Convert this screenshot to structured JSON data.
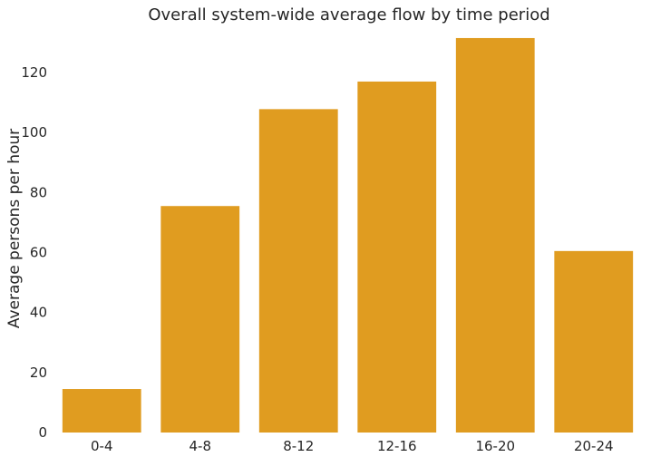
{
  "chart_data": {
    "type": "bar",
    "title": "Overall system-wide average flow by time period",
    "xlabel": "",
    "ylabel": "Average persons per hour",
    "categories": [
      "0-4",
      "4-8",
      "8-12",
      "12-16",
      "16-20",
      "20-24"
    ],
    "values": [
      14.5,
      75.5,
      107.8,
      117.0,
      131.5,
      60.5
    ],
    "ylim": [
      0,
      133
    ],
    "yticks": [
      0,
      20,
      40,
      60,
      80,
      100,
      120
    ],
    "grid": false,
    "bar_color": "#E09C20"
  }
}
